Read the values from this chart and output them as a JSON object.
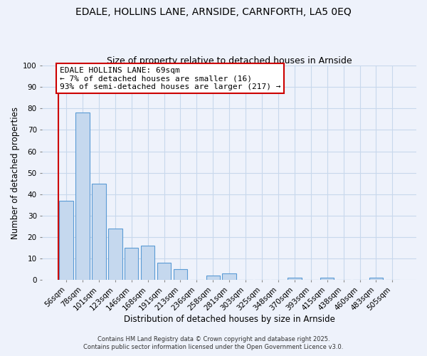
{
  "title": "EDALE, HOLLINS LANE, ARNSIDE, CARNFORTH, LA5 0EQ",
  "subtitle": "Size of property relative to detached houses in Arnside",
  "xlabel": "Distribution of detached houses by size in Arnside",
  "ylabel": "Number of detached properties",
  "bar_labels": [
    "56sqm",
    "78sqm",
    "101sqm",
    "123sqm",
    "146sqm",
    "168sqm",
    "191sqm",
    "213sqm",
    "236sqm",
    "258sqm",
    "281sqm",
    "303sqm",
    "325sqm",
    "348sqm",
    "370sqm",
    "393sqm",
    "415sqm",
    "438sqm",
    "460sqm",
    "483sqm",
    "505sqm"
  ],
  "bar_values": [
    37,
    78,
    45,
    24,
    15,
    16,
    8,
    5,
    0,
    2,
    3,
    0,
    0,
    0,
    1,
    0,
    1,
    0,
    0,
    1,
    0
  ],
  "bar_color": "#c5d8ee",
  "bar_edge_color": "#5b9bd5",
  "grid_color": "#c8d8ec",
  "background_color": "#eef2fb",
  "ylim": [
    0,
    100
  ],
  "yticks": [
    0,
    10,
    20,
    30,
    40,
    50,
    60,
    70,
    80,
    90,
    100
  ],
  "property_line_color": "#cc0000",
  "annotation_title": "EDALE HOLLINS LANE: 69sqm",
  "annotation_line1": "← 7% of detached houses are smaller (16)",
  "annotation_line2": "93% of semi-detached houses are larger (217) →",
  "footer1": "Contains HM Land Registry data © Crown copyright and database right 2025.",
  "footer2": "Contains public sector information licensed under the Open Government Licence v3.0.",
  "title_fontsize": 10,
  "subtitle_fontsize": 9,
  "axis_label_fontsize": 8.5,
  "tick_fontsize": 7.5,
  "annotation_fontsize": 8,
  "footer_fontsize": 6
}
